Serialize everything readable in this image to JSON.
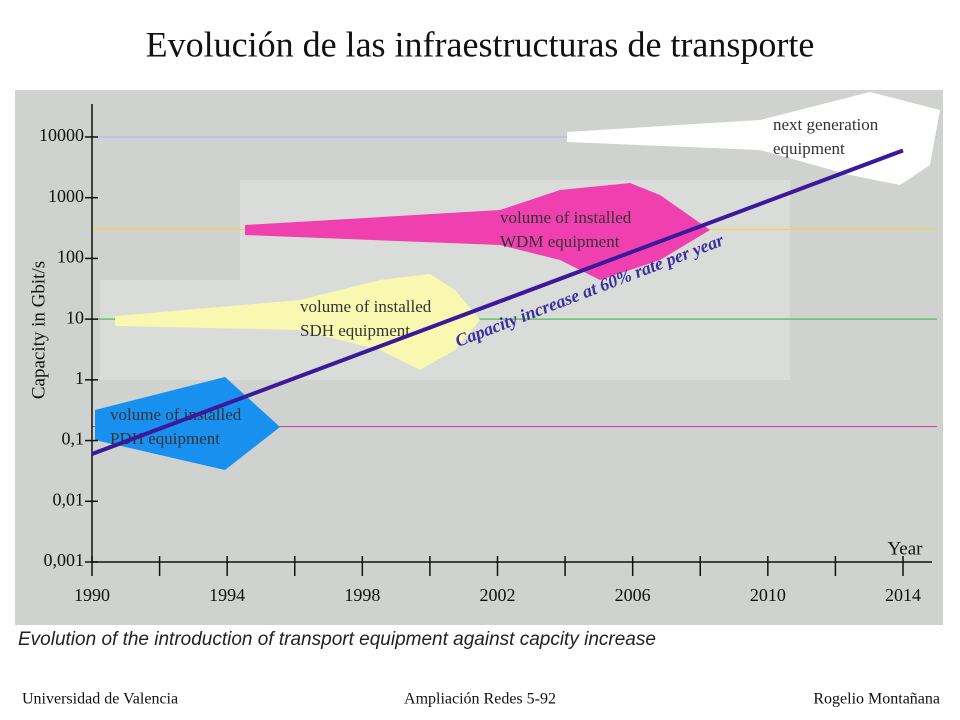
{
  "title": "Evolución de las infraestructuras de transporte",
  "chart_data": {
    "type": "line",
    "y_label": "Capacity in Gbit/s",
    "x_label": "Year",
    "caption": "Evolution of the introduction of transport equipment against capcity increase",
    "log_y": true,
    "xlim": [
      1990,
      2014
    ],
    "xticks": [
      1990,
      1994,
      1998,
      2002,
      2006,
      2010,
      2014
    ],
    "x_minor_ticks": [
      1992,
      1996,
      2000,
      2004,
      2008,
      2012
    ],
    "ylim": [
      0.001,
      30000
    ],
    "yticks": [
      {
        "value": 0.001,
        "label": "0,001"
      },
      {
        "value": 0.01,
        "label": "0,01"
      },
      {
        "value": 0.1,
        "label": "0,1"
      },
      1,
      10,
      100,
      1000,
      10000
    ],
    "reference_lines": [
      {
        "value": 10000,
        "color": "#b8b8f0"
      },
      {
        "value": 300,
        "color": "#e8d84a"
      },
      {
        "value": 10,
        "color": "#4cc04c"
      },
      {
        "value": 0.17,
        "color": "#c050a0"
      }
    ],
    "series": [
      {
        "name": "Capacity increase at 60% rate per year",
        "color": "#3a1a9a",
        "x": [
          1990,
          2014
        ],
        "values": [
          0.06,
          6000
        ]
      }
    ],
    "regions": [
      {
        "lines": [
          "volume of installed",
          "PDH equipment"
        ],
        "color": "#1890f0"
      },
      {
        "lines": [
          "volume of installed",
          "SDH equipment"
        ],
        "color": "#f8f8b0"
      },
      {
        "lines": [
          "volume of installed",
          "WDM equipment"
        ],
        "color": "#f040b0"
      },
      {
        "lines": [
          "next generation",
          "equipment"
        ],
        "color": "#ffffff"
      }
    ]
  },
  "footer": {
    "left": "Universidad de Valencia",
    "center": "Ampliación Redes 5-92",
    "right": "Rogelio Montañana"
  }
}
